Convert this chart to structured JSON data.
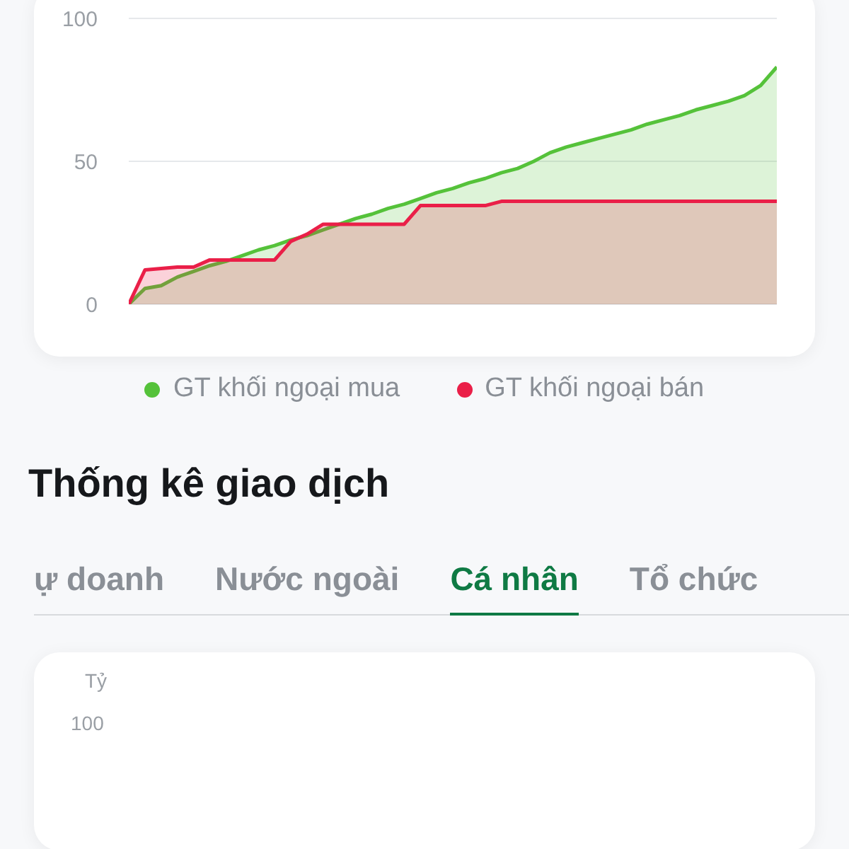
{
  "chart_data": [
    {
      "type": "area",
      "categories": [
        null,
        null,
        null,
        null,
        null,
        null,
        null,
        null,
        null,
        null,
        null,
        null,
        null,
        null,
        null,
        null,
        null,
        null,
        null,
        null,
        null,
        null,
        null,
        null,
        null,
        null,
        null,
        null,
        null,
        null,
        null,
        null,
        null,
        null,
        null,
        null,
        null,
        null,
        null,
        null,
        null
      ],
      "series": [
        {
          "name": "GT khối ngoại mua",
          "color": "#55c23a",
          "values": [
            0,
            5.5,
            6.5,
            9.5,
            11.5,
            13.5,
            15,
            17,
            19,
            20.5,
            22.5,
            24,
            26,
            28,
            30,
            31.5,
            33.5,
            35,
            37,
            39,
            40.5,
            42.5,
            44,
            46,
            47.5,
            50,
            53,
            55,
            56.5,
            58,
            59.5,
            61,
            63,
            64.5,
            66,
            68,
            69.5,
            71,
            73,
            76.5,
            83
          ]
        },
        {
          "name": "GT khối ngoại bán",
          "color": "#ea1f48",
          "values": [
            0,
            12,
            12.5,
            13,
            13,
            15.5,
            15.5,
            15.5,
            15.5,
            15.5,
            22,
            24.5,
            28,
            28,
            28,
            28,
            28,
            28,
            34.5,
            34.5,
            34.5,
            34.5,
            34.5,
            36,
            36,
            36,
            36,
            36,
            36,
            36,
            36,
            36,
            36,
            36,
            36,
            36,
            36,
            36,
            36,
            36,
            36
          ]
        }
      ],
      "ylim": [
        0,
        100
      ],
      "yticks": [
        0,
        50,
        100
      ],
      "grid": "y",
      "legend": "bottom",
      "annotations": [
        "Thống kê giao dịch",
        "ự doanh",
        "Nước ngoài",
        "Cá nhân",
        "Tổ chức"
      ]
    },
    {
      "type": "other",
      "ylabel": "Tỷ",
      "annotations": [
        "100"
      ]
    }
  ]
}
